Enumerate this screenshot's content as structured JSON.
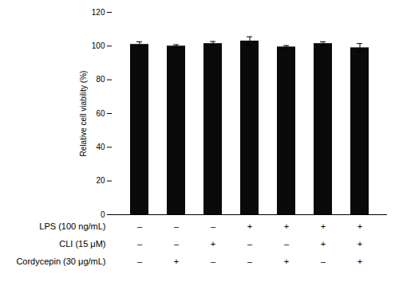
{
  "chart_data": {
    "type": "bar",
    "ylabel": "Relative cell viability (%)",
    "categories": [
      null,
      null,
      null,
      null,
      null,
      null,
      null
    ],
    "values": [
      101.0,
      100.0,
      101.5,
      103.0,
      99.5,
      101.5,
      99.0
    ],
    "errors": [
      1.5,
      0.8,
      1.2,
      2.5,
      0.8,
      1.0,
      2.5
    ],
    "color": "#0a0a0a",
    "ylim": [
      0,
      120
    ],
    "yticks": [
      0,
      20,
      40,
      60,
      80,
      100,
      120
    ],
    "grid": false,
    "tick_labels": "y",
    "annotations": [
      {
        "label": "LPS (100 ng/mL)",
        "signs": [
          "–",
          "–",
          "–",
          "+",
          "+",
          "+",
          "+"
        ]
      },
      {
        "label": "CLI (15 μM)",
        "signs": [
          "–",
          "–",
          "+",
          "–",
          "–",
          "+",
          "+"
        ]
      },
      {
        "label": "Cordycepin (30 μg/mL)",
        "signs": [
          "–",
          "+",
          "–",
          "–",
          "+",
          "–",
          "+"
        ]
      }
    ]
  }
}
